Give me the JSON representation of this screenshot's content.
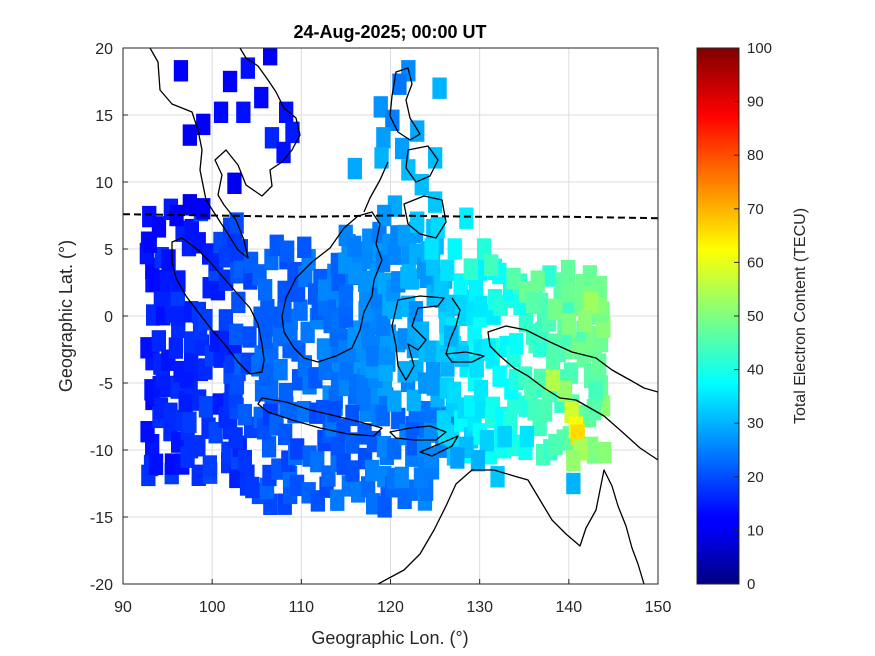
{
  "chart_data": {
    "type": "heatmap",
    "title": "24-Aug-2025; 00:00 UT",
    "xlabel": "Geographic Lon. (°)",
    "ylabel": "Geographic Lat. (°)",
    "colorbar_label": "Total Electron Content (TECU)",
    "xlim": [
      90,
      150
    ],
    "ylim": [
      -20,
      20
    ],
    "xticks": [
      90,
      100,
      110,
      120,
      130,
      140,
      150
    ],
    "yticks": [
      -20,
      -15,
      -10,
      -5,
      0,
      5,
      10,
      15,
      20
    ],
    "clim": [
      0,
      100
    ],
    "cticks": [
      0,
      10,
      20,
      30,
      40,
      50,
      60,
      70,
      80,
      90,
      100
    ],
    "colormap": "jet",
    "grid": true,
    "cell_size_deg": 1.6,
    "dip_equator": [
      [
        90,
        7.6
      ],
      [
        100,
        7.5
      ],
      [
        110,
        7.4
      ],
      [
        120,
        7.5
      ],
      [
        130,
        7.4
      ],
      [
        140,
        7.4
      ],
      [
        150,
        7.3
      ]
    ],
    "regions": [
      {
        "lon": [
          93,
          103
        ],
        "lat": [
          -12,
          8
        ],
        "base": 15,
        "lon_gradient": 0.3
      },
      {
        "lon": [
          103,
          120
        ],
        "lat": [
          -7,
          6
        ],
        "base": 20,
        "lon_gradient": 0.4
      },
      {
        "lon": [
          104,
          127
        ],
        "lat": [
          -14,
          -7
        ],
        "base": 20,
        "lon_gradient": 0.2
      },
      {
        "lon": [
          114,
          127
        ],
        "lat": [
          -6,
          7
        ],
        "base": 24,
        "lon_gradient": 0.5
      },
      {
        "lon": [
          126,
          144
        ],
        "lat": [
          -10,
          4
        ],
        "base": 33,
        "lon_gradient": 0.9
      }
    ],
    "points": [
      {
        "lon": 96.5,
        "lat": 18.3,
        "tec": 12
      },
      {
        "lon": 104.0,
        "lat": 18.5,
        "tec": 14
      },
      {
        "lon": 106.5,
        "lat": 19.5,
        "tec": 12
      },
      {
        "lon": 102.0,
        "lat": 17.5,
        "tec": 12
      },
      {
        "lon": 101.0,
        "lat": 15.2,
        "tec": 13
      },
      {
        "lon": 103.5,
        "lat": 15.2,
        "tec": 14
      },
      {
        "lon": 105.5,
        "lat": 16.3,
        "tec": 13
      },
      {
        "lon": 108.3,
        "lat": 15.2,
        "tec": 14
      },
      {
        "lon": 97.5,
        "lat": 13.5,
        "tec": 11
      },
      {
        "lon": 99.0,
        "lat": 14.3,
        "tec": 12
      },
      {
        "lon": 106.7,
        "lat": 13.3,
        "tec": 16
      },
      {
        "lon": 109.0,
        "lat": 13.7,
        "tec": 15
      },
      {
        "lon": 108.0,
        "lat": 12.2,
        "tec": 14
      },
      {
        "lon": 102.5,
        "lat": 9.9,
        "tec": 11
      },
      {
        "lon": 122.0,
        "lat": 18.3,
        "tec": 26
      },
      {
        "lon": 121.0,
        "lat": 17.3,
        "tec": 24
      },
      {
        "lon": 125.5,
        "lat": 17.0,
        "tec": 30
      },
      {
        "lon": 118.9,
        "lat": 15.6,
        "tec": 27
      },
      {
        "lon": 120.2,
        "lat": 14.6,
        "tec": 25
      },
      {
        "lon": 119.2,
        "lat": 13.3,
        "tec": 28
      },
      {
        "lon": 123.0,
        "lat": 13.8,
        "tec": 29
      },
      {
        "lon": 121.3,
        "lat": 12.5,
        "tec": 28
      },
      {
        "lon": 119.0,
        "lat": 11.8,
        "tec": 30
      },
      {
        "lon": 125.0,
        "lat": 11.8,
        "tec": 31
      },
      {
        "lon": 116.0,
        "lat": 11.0,
        "tec": 29
      },
      {
        "lon": 122.0,
        "lat": 10.9,
        "tec": 31
      },
      {
        "lon": 123.5,
        "lat": 9.8,
        "tec": 31
      },
      {
        "lon": 125.0,
        "lat": 8.5,
        "tec": 32
      },
      {
        "lon": 120.5,
        "lat": 8.2,
        "tec": 29
      },
      {
        "lon": 119.3,
        "lat": 7.5,
        "tec": 27
      },
      {
        "lon": 123.0,
        "lat": 7.0,
        "tec": 32
      },
      {
        "lon": 125.3,
        "lat": 6.6,
        "tec": 34
      },
      {
        "lon": 128.5,
        "lat": 7.3,
        "tec": 36
      },
      {
        "lon": 124.6,
        "lat": 5.0,
        "tec": 35
      },
      {
        "lon": 127.2,
        "lat": 5.0,
        "tec": 37
      },
      {
        "lon": 130.5,
        "lat": 5.0,
        "tec": 41
      },
      {
        "lon": 129.0,
        "lat": 3.5,
        "tec": 42
      },
      {
        "lon": 131.3,
        "lat": 3.8,
        "tec": 44
      },
      {
        "lon": 133.8,
        "lat": 2.8,
        "tec": 46
      },
      {
        "lon": 135.2,
        "lat": 1.8,
        "tec": 48
      },
      {
        "lon": 136.5,
        "lat": 2.6,
        "tec": 48
      },
      {
        "lon": 136.0,
        "lat": 1.0,
        "tec": 46
      },
      {
        "lon": 138.5,
        "lat": 0.5,
        "tec": 49
      },
      {
        "lon": 142.5,
        "lat": 1.0,
        "tec": 53
      },
      {
        "lon": 140.0,
        "lat": -0.6,
        "tec": 50
      },
      {
        "lon": 141.8,
        "lat": -0.4,
        "tec": 51
      },
      {
        "lon": 143.0,
        "lat": -5.7,
        "tec": 44
      },
      {
        "lon": 142.8,
        "lat": -7.0,
        "tec": 46
      },
      {
        "lon": 140.3,
        "lat": -7.2,
        "tec": 58
      },
      {
        "lon": 140.8,
        "lat": -8.3,
        "tec": 62
      },
      {
        "lon": 141.0,
        "lat": -8.9,
        "tec": 66
      },
      {
        "lon": 139.5,
        "lat": -5.6,
        "tec": 52
      },
      {
        "lon": 138.2,
        "lat": -4.8,
        "tec": 55
      },
      {
        "lon": 142.5,
        "lat": -9.8,
        "tec": 50
      },
      {
        "lon": 141.3,
        "lat": -10.0,
        "tec": 54
      },
      {
        "lon": 140.5,
        "lat": -10.8,
        "tec": 52
      },
      {
        "lon": 138.5,
        "lat": -9.6,
        "tec": 45
      },
      {
        "lon": 135.3,
        "lat": -9.0,
        "tec": 35
      },
      {
        "lon": 130.8,
        "lat": -9.3,
        "tec": 33
      },
      {
        "lon": 132.8,
        "lat": -9.0,
        "tec": 33
      },
      {
        "lon": 128.5,
        "lat": -9.8,
        "tec": 31
      },
      {
        "lon": 129.8,
        "lat": -10.8,
        "tec": 30
      },
      {
        "lon": 127.5,
        "lat": -10.6,
        "tec": 28
      },
      {
        "lon": 132.0,
        "lat": -12.0,
        "tec": 32
      },
      {
        "lon": 140.5,
        "lat": -12.5,
        "tec": 30
      },
      {
        "lon": 104.5,
        "lat": -12.8,
        "tec": 18
      },
      {
        "lon": 96.0,
        "lat": 7.5,
        "tec": 12
      },
      {
        "lon": 97.5,
        "lat": 8.3,
        "tec": 11
      },
      {
        "lon": 99.0,
        "lat": 8.0,
        "tec": 12
      },
      {
        "lon": 93.0,
        "lat": 5.5,
        "tec": 13
      },
      {
        "lon": 128.0,
        "lat": -3.0,
        "tec": 32
      },
      {
        "lon": 126.8,
        "lat": -1.5,
        "tec": 30
      },
      {
        "lon": 131.0,
        "lat": -2.5,
        "tec": 36
      }
    ]
  }
}
